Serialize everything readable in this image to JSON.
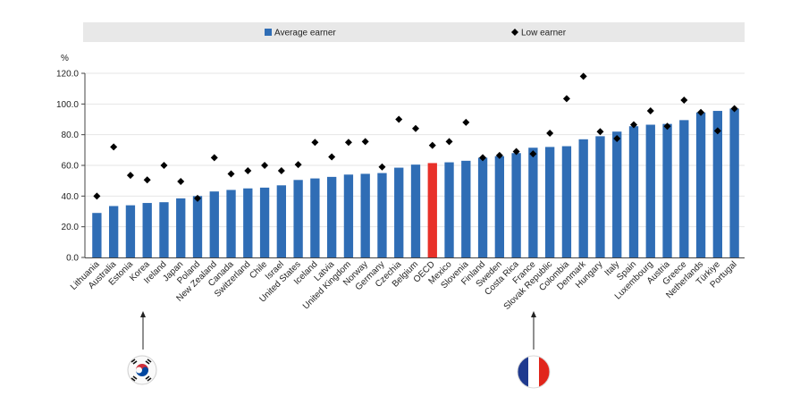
{
  "chart_data": {
    "type": "bar",
    "ylabel": "%",
    "ylim": [
      0,
      120
    ],
    "yticks": [
      "0.0",
      "20.0",
      "40.0",
      "60.0",
      "80.0",
      "100.0",
      "120.0"
    ],
    "ytick_values": [
      0,
      20,
      40,
      60,
      80,
      100,
      120
    ],
    "grid": true,
    "legend_position": "top",
    "highlight_category": "OECD",
    "colors": {
      "bar": "#2f6db5",
      "highlight": "#e8312a",
      "marker": "#000000",
      "legend_bg": "#e8e8e8",
      "grid": "#ffffff"
    },
    "categories": [
      "Lithuania",
      "Australia",
      "Estonia",
      "Korea",
      "Ireland",
      "Japan",
      "Poland",
      "New Zealand",
      "Canada",
      "Switzerland",
      "Chile",
      "Israel",
      "United States",
      "Iceland",
      "Latvia",
      "United Kingdom",
      "Norway",
      "Germany",
      "Czechia",
      "Belgium",
      "OECD",
      "Mexico",
      "Slovenia",
      "Finland",
      "Sweden",
      "Costa Rica",
      "France",
      "Slovak Republic",
      "Colombia",
      "Denmark",
      "Hungary",
      "Italy",
      "Spain",
      "Luxembourg",
      "Austria",
      "Greece",
      "Netherlands",
      "Türkiye",
      "Portugal"
    ],
    "series": [
      {
        "name": "Average earner",
        "kind": "bar",
        "values": [
          29,
          33.5,
          34,
          35.5,
          36,
          38.5,
          40,
          43,
          44,
          45,
          45.5,
          47,
          50.5,
          51.5,
          52.5,
          54,
          54.5,
          55,
          58.5,
          60.5,
          61.5,
          62,
          63,
          65,
          66,
          68,
          71.5,
          72,
          72.5,
          77,
          79,
          82,
          85.5,
          86.5,
          87,
          89.5,
          94.5,
          95.5,
          97
        ]
      },
      {
        "name": "Low earner",
        "kind": "marker",
        "values": [
          40,
          72,
          53.5,
          50.5,
          60,
          49.5,
          38.5,
          65,
          54.5,
          56.5,
          60,
          56.5,
          60.5,
          75,
          65.5,
          75,
          75.5,
          59,
          90,
          84,
          73,
          75.5,
          88,
          65,
          66.5,
          69,
          67.5,
          81,
          103.5,
          118,
          82,
          77.5,
          86.5,
          95.5,
          85.5,
          102.5,
          94.5,
          82.5,
          97
        ]
      }
    ],
    "annotations": [
      {
        "target": "Korea",
        "icon": "korea-flag-icon"
      },
      {
        "target": "France",
        "icon": "france-flag-icon"
      }
    ]
  }
}
